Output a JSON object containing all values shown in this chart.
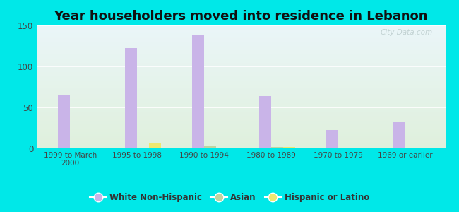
{
  "title": "Year householders moved into residence in Lebanon",
  "categories": [
    "1999 to March\n2000",
    "1995 to 1998",
    "1990 to 1994",
    "1980 to 1989",
    "1970 to 1979",
    "1969 or earlier"
  ],
  "white_non_hispanic": [
    65,
    122,
    138,
    64,
    22,
    33
  ],
  "asian": [
    0,
    0,
    3,
    2,
    0,
    0
  ],
  "hispanic_or_latino": [
    0,
    7,
    0,
    2,
    0,
    0
  ],
  "white_color": "#c9b4e8",
  "asian_color": "#c0d4a0",
  "hispanic_color": "#eee870",
  "background_outer": "#00e8e8",
  "ylim": [
    0,
    150
  ],
  "yticks": [
    0,
    50,
    100,
    150
  ],
  "bar_width": 0.18,
  "title_fontsize": 13,
  "watermark": "City-Data.com"
}
